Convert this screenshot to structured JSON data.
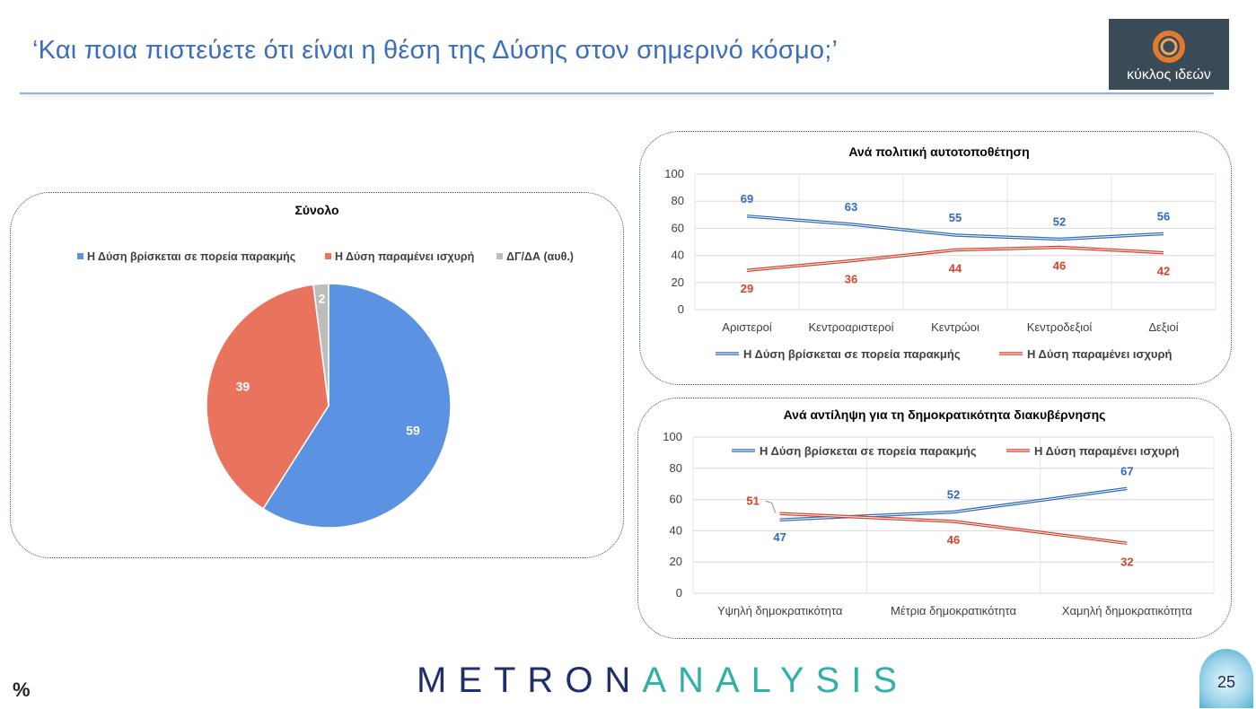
{
  "header": {
    "title": "‘Και ποια πιστεύετε ότι είναι η θέση της Δύσης στον σημερινό κόσμο;’",
    "logo_text": "κύκλος ιδεών"
  },
  "footer": {
    "brand_part1": "METRON",
    "brand_part2": "ANALYSIS",
    "percent_symbol": "%",
    "page_number": "25"
  },
  "colors": {
    "blue": "#5b93e2",
    "red": "#ea735d",
    "gray": "#bdbdbd",
    "line_blue": "#2e6bc0",
    "line_red": "#d8412b"
  },
  "chart_data": [
    {
      "id": "total",
      "type": "pie",
      "title": "Σύνολο",
      "legend_position": "top",
      "slices": [
        {
          "label": "Η Δύση βρίσκεται σε πορεία παρακμής",
          "value": 59,
          "color": "#5b93e2"
        },
        {
          "label": "Η Δύση παραμένει ισχυρή",
          "value": 39,
          "color": "#ea735d"
        },
        {
          "label": "ΔΓ/ΔΑ (αυθ.)",
          "value": 2,
          "color": "#bdbdbd"
        }
      ]
    },
    {
      "id": "political",
      "type": "line",
      "title": "Ανά πολιτική αυτοτοποθέτηση",
      "legend_position": "bottom",
      "categories": [
        "Αριστεροί",
        "Κεντροαριστεροί",
        "Κεντρώοι",
        "Κεντροδεξιοί",
        "Δεξιοί"
      ],
      "ylim": [
        0,
        100
      ],
      "yticks": [
        0,
        20,
        40,
        60,
        80,
        100
      ],
      "grid": true,
      "series": [
        {
          "name": "Η Δύση βρίσκεται σε πορεία παρακμής",
          "values": [
            69,
            63,
            55,
            52,
            56
          ],
          "color": "#2e6bc0"
        },
        {
          "name": "Η Δύση παραμένει ισχυρή",
          "values": [
            29,
            36,
            44,
            46,
            42
          ],
          "color": "#d8412b"
        }
      ]
    },
    {
      "id": "democracy",
      "type": "line",
      "title": "Ανά αντίληψη για τη δημοκρατικότητα διακυβέρνησης",
      "legend_position": "top",
      "categories": [
        "Υψηλή δημοκρατικότητα",
        "Μέτρια δημοκρατικότητα",
        "Χαμηλή δημοκρατικότητα"
      ],
      "ylim": [
        0,
        100
      ],
      "yticks": [
        0,
        20,
        40,
        60,
        80,
        100
      ],
      "grid": true,
      "series": [
        {
          "name": "Η Δύση βρίσκεται σε πορεία παρακμής",
          "values": [
            47,
            52,
            67
          ],
          "color": "#2e6bc0"
        },
        {
          "name": "Η Δύση παραμένει ισχυρή",
          "values": [
            51,
            46,
            32
          ],
          "color": "#d8412b"
        }
      ]
    }
  ]
}
